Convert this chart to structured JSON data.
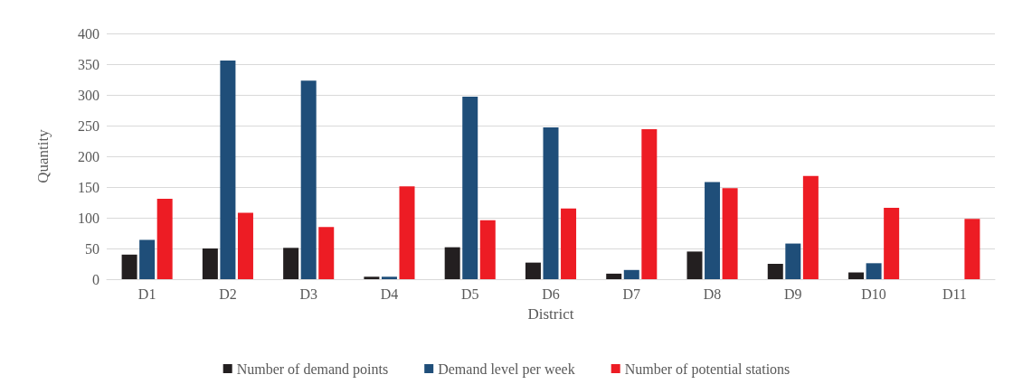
{
  "chart_data": {
    "type": "bar",
    "xlabel": "District",
    "ylabel": "Quantity",
    "categories": [
      "D1",
      "D2",
      "D3",
      "D4",
      "D5",
      "D6",
      "D7",
      "D8",
      "D9",
      "D10",
      "D11"
    ],
    "series": [
      {
        "name": "Number of demand points",
        "color": "#231f20",
        "values": [
          40,
          50,
          51,
          4,
          52,
          27,
          9,
          45,
          25,
          11,
          null
        ]
      },
      {
        "name": "Demand level per week",
        "color": "#1f4e79",
        "values": [
          64,
          356,
          323,
          4,
          297,
          247,
          15,
          158,
          58,
          26,
          null
        ]
      },
      {
        "name": "Number of potential stations",
        "color": "#ed1c24",
        "values": [
          131,
          108,
          85,
          151,
          96,
          115,
          244,
          148,
          168,
          116,
          98
        ]
      }
    ],
    "ylim": [
      0,
      400
    ],
    "yticks": [
      0,
      50,
      100,
      150,
      200,
      250,
      300,
      350,
      400
    ],
    "grid": "y",
    "legend": "bottom"
  }
}
